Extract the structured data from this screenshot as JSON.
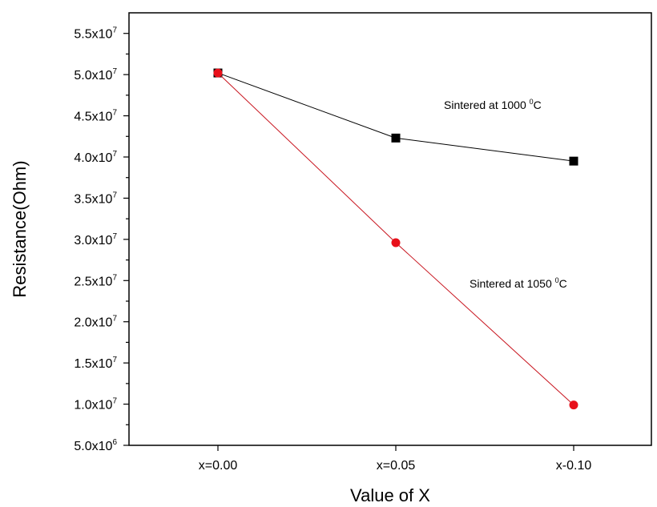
{
  "chart_data": {
    "type": "line",
    "xlabel": "Value of X",
    "ylabel": "Resistance(Ohm)",
    "categories": [
      "x=0.00",
      "x=0.05",
      "x-0.10"
    ],
    "ylim": [
      5000000,
      57500000
    ],
    "yticks": [
      {
        "value": 5000000,
        "mant": "5.0x10",
        "exp": "6"
      },
      {
        "value": 10000000,
        "mant": "1.0x10",
        "exp": "7"
      },
      {
        "value": 15000000,
        "mant": "1.5x10",
        "exp": "7"
      },
      {
        "value": 20000000,
        "mant": "2.0x10",
        "exp": "7"
      },
      {
        "value": 25000000,
        "mant": "2.5x10",
        "exp": "7"
      },
      {
        "value": 30000000,
        "mant": "3.0x10",
        "exp": "7"
      },
      {
        "value": 35000000,
        "mant": "3.5x10",
        "exp": "7"
      },
      {
        "value": 40000000,
        "mant": "4.0x10",
        "exp": "7"
      },
      {
        "value": 45000000,
        "mant": "4.5x10",
        "exp": "7"
      },
      {
        "value": 50000000,
        "mant": "5.0x10",
        "exp": "7"
      },
      {
        "value": 55000000,
        "mant": "5.5x10",
        "exp": "7"
      }
    ],
    "series": [
      {
        "name": "Sintered at 1000 0C",
        "label_text": "Sintered at 1000 ",
        "label_sup": "0",
        "label_unit": "C",
        "color": "#000000",
        "marker": "square",
        "values": [
          50200000,
          42300000,
          39500000
        ]
      },
      {
        "name": "Sintered at 1050 0C",
        "label_text": "Sintered at 1050 ",
        "label_sup": "0",
        "label_unit": "C",
        "color": "#e8101a",
        "line_color": "#c8141e",
        "marker": "circle",
        "values": [
          50200000,
          29600000,
          9900000
        ]
      }
    ],
    "grid": false
  }
}
